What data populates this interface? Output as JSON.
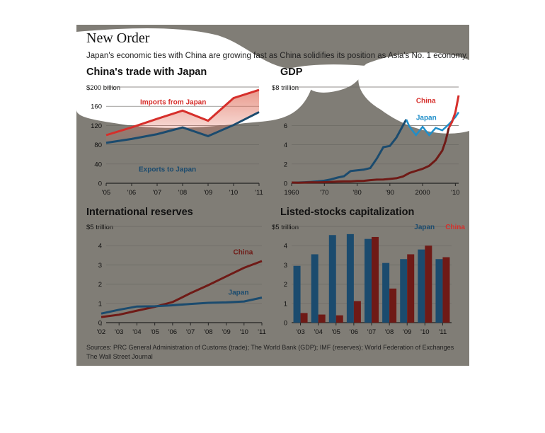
{
  "header": {
    "title": "New Order",
    "subtitle": "Japan's economic ties with China are growing fast as China solidifies its position as Asia's No. 1 economy."
  },
  "footer": {
    "sources": "Sources: PRC General Administration of Customs (trade); The World Bank (GDP); IMF (reserves); World Federation of Exchanges",
    "credit": "The Wall Street Journal"
  },
  "colors": {
    "china": "#d62f2b",
    "china_dark": "#6f1a16",
    "japan": "#1b4b6e",
    "japan_light": "#1f8ec9",
    "grid": "#6c6964",
    "text": "#111111"
  },
  "chart_data": [
    {
      "id": "trade",
      "type": "line",
      "title": "China's trade with Japan",
      "unit_label": "$200 billion",
      "ytick_labels": [
        "0",
        "40",
        "80",
        "120",
        "160"
      ],
      "ylim": [
        0,
        200
      ],
      "x": [
        2005,
        2006,
        2007,
        2008,
        2009,
        2010,
        2011
      ],
      "xtick_labels": [
        "'05",
        "'06",
        "'07",
        "'08",
        "'09",
        "'10",
        "'11"
      ],
      "series": [
        {
          "name": "Imports from Japan",
          "color": "china",
          "values": [
            100,
            116,
            134,
            151,
            130,
            177,
            194
          ]
        },
        {
          "name": "Exports to Japan",
          "color": "japan",
          "values": [
            84,
            92,
            102,
            116,
            98,
            121,
            148
          ]
        }
      ]
    },
    {
      "id": "gdp",
      "type": "line",
      "title": "GDP",
      "unit_label": "$8 trillion",
      "ytick_labels": [
        "0",
        "2",
        "4",
        "6"
      ],
      "ylim": [
        0,
        8
      ],
      "xlim": [
        1960,
        2011
      ],
      "xtick_labels": [
        "1960",
        "'70",
        "'80",
        "'90",
        "2000",
        "'10"
      ],
      "xtick_values": [
        1960,
        1970,
        1980,
        1990,
        2000,
        2010
      ],
      "series": [
        {
          "name": "China",
          "color": "china_dark",
          "accent_color": "china",
          "x": [
            1960,
            1962,
            1964,
            1966,
            1968,
            1970,
            1972,
            1974,
            1976,
            1978,
            1980,
            1982,
            1984,
            1986,
            1988,
            1990,
            1992,
            1994,
            1996,
            1998,
            2000,
            2002,
            2004,
            2006,
            2007,
            2008,
            2009,
            2010,
            2011
          ],
          "values": [
            0.06,
            0.05,
            0.06,
            0.08,
            0.07,
            0.09,
            0.11,
            0.14,
            0.15,
            0.15,
            0.19,
            0.2,
            0.26,
            0.3,
            0.31,
            0.36,
            0.42,
            0.56,
            0.86,
            1.03,
            1.2,
            1.45,
            1.93,
            2.72,
            3.5,
            4.6,
            5.1,
            5.9,
            7.3
          ]
        },
        {
          "name": "Japan",
          "color": "japan",
          "accent_color": "japan_light",
          "x": [
            1960,
            1962,
            1964,
            1966,
            1968,
            1970,
            1972,
            1974,
            1976,
            1978,
            1980,
            1982,
            1984,
            1986,
            1988,
            1990,
            1992,
            1994,
            1995,
            1996,
            1998,
            2000,
            2002,
            2004,
            2006,
            2008,
            2010,
            2011
          ],
          "values": [
            0.04,
            0.06,
            0.08,
            0.11,
            0.15,
            0.21,
            0.32,
            0.47,
            0.58,
            1.01,
            1.07,
            1.13,
            1.26,
            2.05,
            3.0,
            3.1,
            3.8,
            4.8,
            5.3,
            4.7,
            4.0,
            4.7,
            4.0,
            4.6,
            4.4,
            4.9,
            5.5,
            5.9
          ]
        }
      ]
    },
    {
      "id": "reserves",
      "type": "line",
      "title": "International reserves",
      "unit_label": "$5 trillion",
      "ytick_labels": [
        "0",
        "1",
        "2",
        "3",
        "4"
      ],
      "ylim": [
        0,
        5
      ],
      "x": [
        2002,
        2003,
        2004,
        2005,
        2006,
        2007,
        2008,
        2009,
        2010,
        2011
      ],
      "xtick_labels": [
        "'02",
        "'03",
        "'04",
        "'05",
        "'06",
        "'07",
        "'08",
        "'09",
        "'10",
        "'11"
      ],
      "series": [
        {
          "name": "China",
          "color": "china_dark",
          "values": [
            0.29,
            0.41,
            0.62,
            0.82,
            1.07,
            1.53,
            1.95,
            2.4,
            2.85,
            3.2
          ]
        },
        {
          "name": "Japan",
          "color": "japan",
          "values": [
            0.47,
            0.67,
            0.84,
            0.85,
            0.9,
            0.97,
            1.03,
            1.05,
            1.1,
            1.3
          ]
        }
      ]
    },
    {
      "id": "stocks",
      "type": "bar",
      "title": "Listed-stocks capitalization",
      "unit_label": "$5 trillion",
      "ytick_labels": [
        "0",
        "1",
        "2",
        "3",
        "4"
      ],
      "ylim": [
        0,
        5
      ],
      "categories": [
        "'03",
        "'04",
        "'05",
        "'06",
        "'07",
        "'08",
        "'09",
        "'10",
        "'11"
      ],
      "series": [
        {
          "name": "Japan",
          "color": "japan",
          "values": [
            2.95,
            3.55,
            4.55,
            4.6,
            4.35,
            3.1,
            3.3,
            3.8,
            3.3
          ]
        },
        {
          "name": "China",
          "color": "china_dark",
          "values": [
            0.5,
            0.42,
            0.38,
            1.12,
            4.45,
            1.77,
            3.55,
            4.0,
            3.4
          ]
        }
      ]
    }
  ]
}
